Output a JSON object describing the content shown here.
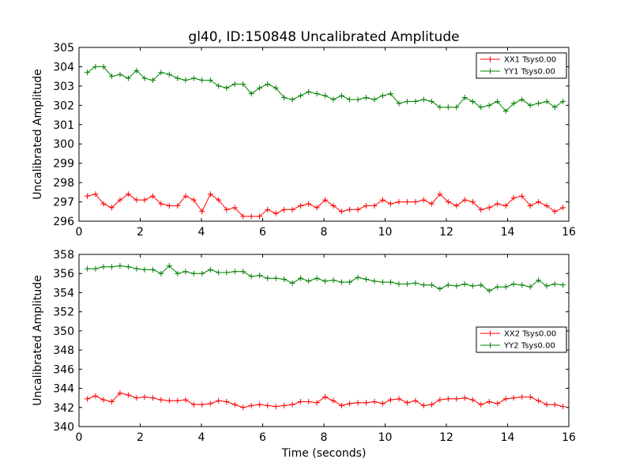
{
  "figure": {
    "title": "gl40, ID:150848 Uncalibrated Amplitude",
    "xlabel": "Time (seconds)"
  },
  "colors": {
    "xx": "#ff0000",
    "yy": "#008000",
    "axes": "#000000",
    "background": "#ffffff"
  },
  "chart_data": [
    {
      "type": "line",
      "title": "gl40, ID:150848 Uncalibrated Amplitude",
      "xlabel": "",
      "ylabel": "Uncalibrated Amplitude",
      "xlim": [
        0,
        16
      ],
      "ylim": [
        296,
        305
      ],
      "xticks": [
        "0",
        "2",
        "4",
        "6",
        "8",
        "10",
        "12",
        "14",
        "16"
      ],
      "yticks": [
        "296",
        "297",
        "298",
        "299",
        "300",
        "301",
        "302",
        "303",
        "304",
        "305"
      ],
      "legend_position": "top-right",
      "x": [
        0.27,
        0.54,
        0.8,
        1.07,
        1.34,
        1.61,
        1.88,
        2.14,
        2.41,
        2.68,
        2.95,
        3.22,
        3.48,
        3.75,
        4.02,
        4.29,
        4.56,
        4.82,
        5.09,
        5.36,
        5.63,
        5.9,
        6.16,
        6.43,
        6.7,
        6.97,
        7.24,
        7.5,
        7.77,
        8.04,
        8.31,
        8.58,
        8.84,
        9.11,
        9.38,
        9.65,
        9.92,
        10.18,
        10.45,
        10.72,
        10.99,
        11.26,
        11.52,
        11.79,
        12.06,
        12.33,
        12.6,
        12.86,
        13.13,
        13.4,
        13.67,
        13.94,
        14.2,
        14.47,
        14.74,
        15.01,
        15.28,
        15.54,
        15.81
      ],
      "series": [
        {
          "name": "XX1 Tsys0.00",
          "color": "#ff0000",
          "values": [
            297.3,
            297.4,
            296.9,
            296.7,
            297.1,
            297.4,
            297.1,
            297.1,
            297.3,
            296.9,
            296.8,
            296.8,
            297.3,
            297.1,
            296.5,
            297.4,
            297.1,
            296.6,
            296.7,
            296.25,
            296.25,
            296.25,
            296.6,
            296.4,
            296.6,
            296.6,
            296.8,
            296.9,
            296.7,
            297.1,
            296.8,
            296.5,
            296.6,
            296.6,
            296.8,
            296.8,
            297.1,
            296.9,
            297.0,
            297.0,
            297.0,
            297.1,
            296.9,
            297.4,
            297.0,
            296.8,
            297.1,
            297.0,
            296.6,
            296.7,
            296.9,
            296.8,
            297.2,
            297.3,
            296.8,
            297.0,
            296.8,
            296.5,
            296.7
          ]
        },
        {
          "name": "YY1 Tsys0.00",
          "color": "#008000",
          "values": [
            303.7,
            304.0,
            304.0,
            303.5,
            303.6,
            303.4,
            303.8,
            303.4,
            303.3,
            303.7,
            303.6,
            303.4,
            303.3,
            303.4,
            303.3,
            303.3,
            303.0,
            302.9,
            303.1,
            303.1,
            302.6,
            302.9,
            303.1,
            302.9,
            302.4,
            302.3,
            302.5,
            302.7,
            302.6,
            302.5,
            302.3,
            302.5,
            302.3,
            302.3,
            302.4,
            302.3,
            302.5,
            302.6,
            302.1,
            302.2,
            302.2,
            302.3,
            302.2,
            301.9,
            301.9,
            301.9,
            302.4,
            302.2,
            301.9,
            302.0,
            302.2,
            301.7,
            302.1,
            302.3,
            302.0,
            302.1,
            302.2,
            301.9,
            302.2
          ]
        }
      ]
    },
    {
      "type": "line",
      "title": "",
      "xlabel": "Time (seconds)",
      "ylabel": "Uncalibrated Amplitude",
      "xlim": [
        0,
        16
      ],
      "ylim": [
        340,
        358
      ],
      "xticks": [
        "0",
        "2",
        "4",
        "6",
        "8",
        "10",
        "12",
        "14",
        "16"
      ],
      "yticks": [
        "340",
        "342",
        "344",
        "346",
        "348",
        "350",
        "352",
        "354",
        "356",
        "358"
      ],
      "legend_position": "center-right",
      "x": [
        0.27,
        0.54,
        0.8,
        1.07,
        1.34,
        1.61,
        1.88,
        2.14,
        2.41,
        2.68,
        2.95,
        3.22,
        3.48,
        3.75,
        4.02,
        4.29,
        4.56,
        4.82,
        5.09,
        5.36,
        5.63,
        5.9,
        6.16,
        6.43,
        6.7,
        6.97,
        7.24,
        7.5,
        7.77,
        8.04,
        8.31,
        8.58,
        8.84,
        9.11,
        9.38,
        9.65,
        9.92,
        10.18,
        10.45,
        10.72,
        10.99,
        11.26,
        11.52,
        11.79,
        12.06,
        12.33,
        12.6,
        12.86,
        13.13,
        13.4,
        13.67,
        13.94,
        14.2,
        14.47,
        14.74,
        15.01,
        15.28,
        15.54,
        15.81
      ],
      "series": [
        {
          "name": "XX2 Tsys0.00",
          "color": "#ff0000",
          "values": [
            342.9,
            343.2,
            342.8,
            342.6,
            343.5,
            343.3,
            343.0,
            343.1,
            343.0,
            342.8,
            342.7,
            342.7,
            342.8,
            342.3,
            342.3,
            342.4,
            342.7,
            342.6,
            342.3,
            342.0,
            342.2,
            342.3,
            342.2,
            342.1,
            342.2,
            342.3,
            342.6,
            342.6,
            342.5,
            343.1,
            342.7,
            342.2,
            342.4,
            342.5,
            342.5,
            342.6,
            342.4,
            342.8,
            342.9,
            342.5,
            342.7,
            342.2,
            342.3,
            342.8,
            342.9,
            342.9,
            343.0,
            342.8,
            342.3,
            342.6,
            342.4,
            342.9,
            343.0,
            343.1,
            343.1,
            342.7,
            342.3,
            342.3,
            342.1
          ]
        },
        {
          "name": "YY2 Tsys0.00",
          "color": "#008000",
          "values": [
            356.5,
            356.5,
            356.7,
            356.7,
            356.8,
            356.7,
            356.5,
            356.4,
            356.4,
            356.0,
            356.8,
            356.0,
            356.2,
            356.0,
            356.0,
            356.4,
            356.1,
            356.1,
            356.2,
            356.2,
            355.7,
            355.8,
            355.5,
            355.5,
            355.4,
            355.0,
            355.5,
            355.2,
            355.5,
            355.2,
            355.3,
            355.1,
            355.1,
            355.6,
            355.4,
            355.2,
            355.1,
            355.1,
            354.9,
            354.9,
            355.0,
            354.8,
            354.8,
            354.4,
            354.8,
            354.7,
            354.9,
            354.7,
            354.8,
            354.2,
            354.6,
            354.6,
            354.9,
            354.8,
            354.6,
            355.3,
            354.7,
            354.9,
            354.8
          ]
        }
      ]
    }
  ]
}
